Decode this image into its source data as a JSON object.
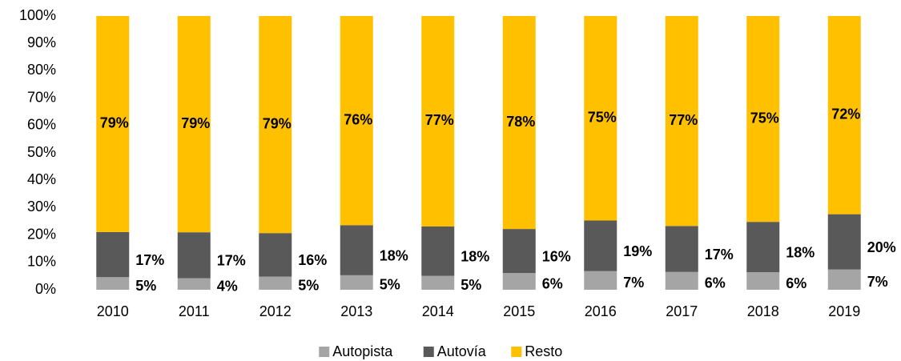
{
  "chart_data": {
    "type": "stacked_bar",
    "categories": [
      "2010",
      "2011",
      "2012",
      "2013",
      "2014",
      "2015",
      "2016",
      "2017",
      "2018",
      "2019"
    ],
    "series": [
      {
        "name": "Autopista",
        "color": "#a5a5a5",
        "values": [
          4.6,
          4.2,
          4.8,
          5.3,
          5.1,
          6.1,
          6.8,
          6.5,
          6.4,
          7.4
        ],
        "value_labels": [
          "5%",
          "4%",
          "5%",
          "5%",
          "5%",
          "6%",
          "7%",
          "6%",
          "6%",
          "7%"
        ]
      },
      {
        "name": "Autovía",
        "color": "#595959",
        "values": [
          16.5,
          16.8,
          15.9,
          18.3,
          18.0,
          16.1,
          18.5,
          16.8,
          18.4,
          20.2
        ],
        "value_labels": [
          "17%",
          "17%",
          "16%",
          "18%",
          "18%",
          "16%",
          "19%",
          "17%",
          "18%",
          "20%"
        ]
      },
      {
        "name": "Resto",
        "color": "#ffc000",
        "values": [
          78.9,
          79.0,
          79.3,
          76.4,
          76.9,
          77.8,
          74.7,
          76.7,
          75.2,
          72.4
        ],
        "value_labels": [
          "79%",
          "79%",
          "79%",
          "76%",
          "77%",
          "78%",
          "75%",
          "77%",
          "75%",
          "72%"
        ]
      }
    ],
    "ylim": [
      0,
      100
    ],
    "yticks": [
      {
        "value": 0,
        "label": "0%"
      },
      {
        "value": 10,
        "label": "10%"
      },
      {
        "value": 20,
        "label": "20%"
      },
      {
        "value": 30,
        "label": "30%"
      },
      {
        "value": 40,
        "label": "40%"
      },
      {
        "value": 50,
        "label": "50%"
      },
      {
        "value": 60,
        "label": "60%"
      },
      {
        "value": 70,
        "label": "70%"
      },
      {
        "value": 80,
        "label": "80%"
      },
      {
        "value": 90,
        "label": "90%"
      },
      {
        "value": 100,
        "label": "100%"
      }
    ],
    "legend": "bottom"
  }
}
